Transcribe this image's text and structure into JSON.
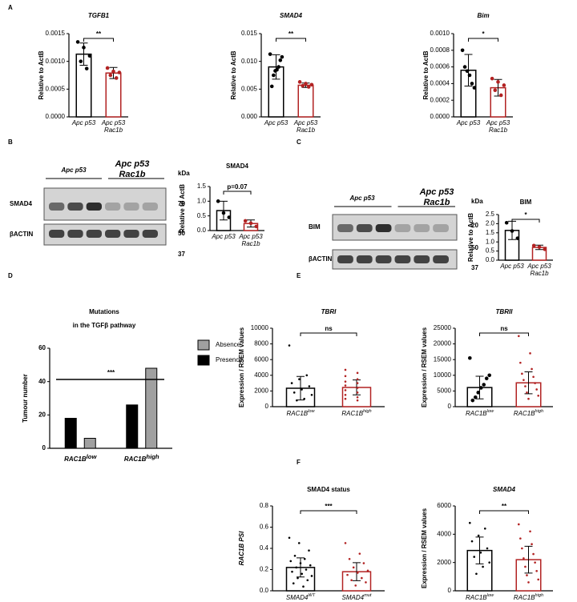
{
  "panel_labels": [
    "A",
    "B",
    "C",
    "D",
    "E",
    "F"
  ],
  "blots": [
    {
      "group_labels": [
        "Apc p53",
        "Apc p53 Rac1b"
      ],
      "kda_label": "kDa",
      "row_labels": [
        "SMAD4",
        "βACTIN"
      ],
      "markers": [
        "70",
        "50",
        "37"
      ]
    },
    {
      "group_labels": [
        "Apc p53",
        "Apc p53 Rac1b"
      ],
      "kda_label": "kDa",
      "row_labels": [
        "BIM",
        "βACTIN"
      ],
      "markers": [
        "20",
        "50",
        "37"
      ]
    }
  ],
  "chart_data": [
    {
      "type": "bar",
      "title": "TGFB1",
      "title_italic": true,
      "ylabel": "Relative to ActB",
      "categories": [
        "Apc p53",
        "Apc p53 Rac1b"
      ],
      "colors": [
        "#000000",
        "#b22222"
      ],
      "values": [
        0.00113,
        0.00079
      ],
      "errors": [
        0.0002,
        0.0001
      ],
      "points": [
        [
          0.00135,
          0.00125,
          0.0011,
          0.001,
          0.00087
        ],
        [
          0.00088,
          0.00082,
          0.0008,
          0.00075,
          0.0007
        ]
      ],
      "significance": "**",
      "ylim": [
        0,
        0.0015
      ],
      "yticks": [
        {
          "value": 0,
          "label": "0.0000"
        },
        {
          "value": 0.0005,
          "label": "0.0005"
        },
        {
          "value": 0.001,
          "label": "0.0010"
        },
        {
          "value": 0.0015,
          "label": "0.0015"
        }
      ]
    },
    {
      "type": "bar",
      "title": "SMAD4",
      "title_italic": true,
      "ylabel": "Relative to ActB",
      "categories": [
        "Apc p53",
        "Apc p53 Rac1b"
      ],
      "colors": [
        "#000000",
        "#b22222"
      ],
      "values": [
        0.009,
        0.0057
      ],
      "errors": [
        0.0022,
        0.0004
      ],
      "points": [
        [
          0.0113,
          0.0108,
          0.0102,
          0.009,
          0.0085,
          0.0083,
          0.0075,
          0.0055
        ],
        [
          0.0063,
          0.006,
          0.0058,
          0.0056,
          0.0054
        ]
      ],
      "significance": "**",
      "ylim": [
        0,
        0.015
      ],
      "yticks": [
        {
          "value": 0,
          "label": "0.000"
        },
        {
          "value": 0.005,
          "label": "0.005"
        },
        {
          "value": 0.01,
          "label": "0.010"
        },
        {
          "value": 0.015,
          "label": "0.015"
        }
      ]
    },
    {
      "type": "bar",
      "title": "Bim",
      "title_italic": true,
      "ylabel": "Relative to ActB",
      "categories": [
        "Apc p53",
        "Apc p53 Rac1b"
      ],
      "colors": [
        "#000000",
        "#b22222"
      ],
      "values": [
        0.00056,
        0.00035
      ],
      "errors": [
        0.00019,
        0.0001
      ],
      "points": [
        [
          0.0008,
          0.0006,
          0.00055,
          0.0005,
          0.0004,
          0.00035
        ],
        [
          0.00046,
          0.00042,
          0.00038,
          0.00032,
          0.00026
        ]
      ],
      "significance": "*",
      "ylim": [
        0,
        0.001
      ],
      "yticks": [
        {
          "value": 0,
          "label": "0.0000"
        },
        {
          "value": 0.0002,
          "label": "0.0002"
        },
        {
          "value": 0.0004,
          "label": "0.0004"
        },
        {
          "value": 0.0006,
          "label": "0.0006"
        },
        {
          "value": 0.0008,
          "label": "0.0008"
        },
        {
          "value": 0.001,
          "label": "0.0010"
        }
      ]
    },
    {
      "type": "bar",
      "title": "SMAD4",
      "title_italic": false,
      "ylabel": "Relative to ActB",
      "categories": [
        "Apc p53",
        "Apc p53 Rac1b"
      ],
      "colors": [
        "#000000",
        "#b22222"
      ],
      "values": [
        0.68,
        0.24
      ],
      "errors": [
        0.32,
        0.12
      ],
      "points": [
        [
          1.0,
          0.6,
          0.45
        ],
        [
          0.33,
          0.25,
          0.14
        ]
      ],
      "significance": "p=0.07",
      "ylim": [
        0,
        1.5
      ],
      "yticks": [
        {
          "value": 0,
          "label": "0.0"
        },
        {
          "value": 0.5,
          "label": "0.5"
        },
        {
          "value": 1,
          "label": "1.0"
        },
        {
          "value": 1.5,
          "label": "1.5"
        }
      ]
    },
    {
      "type": "bar",
      "title": "BIM",
      "title_italic": false,
      "ylabel": "Relative to ActB",
      "categories": [
        "Apc p53",
        "Apc p53 Rac1b"
      ],
      "colors": [
        "#000000",
        "#b22222"
      ],
      "values": [
        1.63,
        0.7
      ],
      "errors": [
        0.5,
        0.12
      ],
      "points": [
        [
          2.05,
          1.6,
          1.2
        ],
        [
          0.8,
          0.72,
          0.6
        ]
      ],
      "significance": "*",
      "ylim": [
        0,
        2.5
      ],
      "yticks": [
        {
          "value": 0,
          "label": "0.0"
        },
        {
          "value": 0.5,
          "label": "0.5"
        },
        {
          "value": 1,
          "label": "1.0"
        },
        {
          "value": 1.5,
          "label": "1.5"
        },
        {
          "value": 2,
          "label": "2.0"
        },
        {
          "value": 2.5,
          "label": "2.5"
        }
      ]
    },
    {
      "type": "grouped_bar",
      "title_lines": [
        "Mutations",
        "in the TGFβ pathway"
      ],
      "ylabel": "Tumour number",
      "categories": [
        "RAC1B",
        "RAC1B"
      ],
      "category_sup": [
        "low",
        "high"
      ],
      "series": [
        {
          "name": "Presence",
          "color": "#000000",
          "values": [
            18,
            26
          ]
        },
        {
          "name": "Absence",
          "color": "#a0a0a0",
          "values": [
            6,
            48
          ]
        }
      ],
      "legend_order": [
        1,
        0
      ],
      "legend": "right",
      "significance": "***",
      "ylim": [
        0,
        60
      ],
      "yticks": [
        0,
        20,
        40,
        60
      ]
    },
    {
      "type": "bar",
      "title": "TBRI",
      "title_italic": true,
      "ylabel": "Expression / RSEM values",
      "categories": [
        "RAC1B",
        "RAC1B"
      ],
      "category_sup": [
        "low",
        "high"
      ],
      "colors": [
        "#000000",
        "#b22222"
      ],
      "values": [
        2350,
        2450
      ],
      "errors": [
        1500,
        950
      ],
      "points": [
        [
          7800,
          4000,
          3500,
          3000,
          2600,
          2200,
          1800,
          1500,
          1000,
          800
        ],
        [
          4700,
          4300,
          3900,
          3500,
          3200,
          3000,
          2700,
          2400,
          2100,
          1800,
          1500,
          1200,
          1000,
          800
        ]
      ],
      "significance": "ns",
      "ylim": [
        0,
        10000
      ],
      "yticks": [
        0,
        2000,
        4000,
        6000,
        8000,
        10000
      ]
    },
    {
      "type": "bar",
      "title": "TBRII",
      "title_italic": true,
      "ylabel": "Expression / RSEM values",
      "categories": [
        "RAC1B",
        "RAC1B"
      ],
      "category_sup": [
        "low",
        "high"
      ],
      "colors": [
        "#000000",
        "#b22222"
      ],
      "values": [
        6100,
        7600
      ],
      "errors": [
        3600,
        3500
      ],
      "points": [
        [
          15500,
          10000,
          9000,
          7000,
          6000,
          4500,
          3000,
          2000
        ],
        [
          22500,
          17000,
          14000,
          12000,
          10500,
          9500,
          8500,
          7500,
          6500,
          5500,
          4500,
          3500,
          2500
        ]
      ],
      "significance": "ns",
      "ylim": [
        0,
        25000
      ],
      "yticks": [
        0,
        5000,
        10000,
        15000,
        20000,
        25000
      ]
    },
    {
      "type": "bar",
      "title": "SMAD4 status",
      "title_italic": false,
      "ylabel": "RAC1B PSI",
      "categories": [
        "SMAD4",
        "SMAD4"
      ],
      "category_sup": [
        "WT",
        "mut"
      ],
      "colors": [
        "#000000",
        "#b22222"
      ],
      "values": [
        0.22,
        0.18
      ],
      "errors": [
        0.09,
        0.085
      ],
      "points": [
        [
          0.5,
          0.45,
          0.38,
          0.33,
          0.3,
          0.28,
          0.26,
          0.24,
          0.22,
          0.2,
          0.18,
          0.16,
          0.14,
          0.12,
          0.1,
          0.07,
          0.04
        ],
        [
          0.45,
          0.35,
          0.3,
          0.26,
          0.22,
          0.19,
          0.17,
          0.15,
          0.12,
          0.1,
          0.08,
          0.05
        ]
      ],
      "significance": "***",
      "ylim": [
        0,
        0.8
      ],
      "yticks": [
        {
          "value": 0,
          "label": "0.0"
        },
        {
          "value": 0.2,
          "label": "0.2"
        },
        {
          "value": 0.4,
          "label": "0.4"
        },
        {
          "value": 0.6,
          "label": "0.6"
        },
        {
          "value": 0.8,
          "label": "0.8"
        }
      ]
    },
    {
      "type": "bar",
      "title": "SMAD4",
      "title_italic": true,
      "ylabel": "Expression / RSEM values",
      "categories": [
        "RAC1B",
        "RAC1B"
      ],
      "category_sup": [
        "low",
        "high"
      ],
      "colors": [
        "#000000",
        "#b22222"
      ],
      "values": [
        2850,
        2200
      ],
      "errors": [
        950,
        950
      ],
      "points": [
        [
          4800,
          4400,
          3900,
          3500,
          3000,
          2700,
          2400,
          2000,
          1700,
          1200
        ],
        [
          4700,
          4200,
          3700,
          3300,
          3000,
          2600,
          2300,
          2000,
          1700,
          1400,
          1100,
          800,
          600
        ]
      ],
      "significance": "**",
      "ylim": [
        0,
        6000
      ],
      "yticks": [
        0,
        2000,
        4000,
        6000
      ]
    }
  ]
}
